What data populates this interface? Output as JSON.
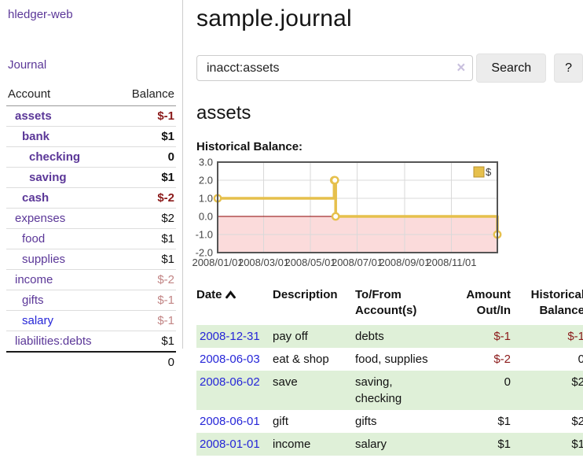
{
  "colors": {
    "purple": "#5b3798",
    "blue": "#2626d8",
    "neg": "#8b1a1a",
    "negmuted": "#c28585",
    "stripe": "#dff0d8",
    "gold": "#e6c04c"
  },
  "app": {
    "brand": "hledger-web",
    "nav_journal": "Journal"
  },
  "sidebar": {
    "accounts_table": {
      "headers": [
        "Account",
        "Balance"
      ],
      "rows": [
        {
          "name": "assets",
          "balance": "$-1",
          "depth": 1,
          "bold": true,
          "name_color": "purple",
          "balance_color": "neg"
        },
        {
          "name": "bank",
          "balance": "$1",
          "depth": 2,
          "bold": true,
          "name_color": "purple",
          "balance_color": "default"
        },
        {
          "name": "checking",
          "balance": "0",
          "depth": 3,
          "bold": true,
          "name_color": "purple",
          "balance_color": "default"
        },
        {
          "name": "saving",
          "balance": "$1",
          "depth": 3,
          "bold": true,
          "name_color": "purple",
          "balance_color": "default"
        },
        {
          "name": "cash",
          "balance": "$-2",
          "depth": 2,
          "bold": true,
          "name_color": "purple",
          "balance_color": "neg"
        },
        {
          "name": "expenses",
          "balance": "$2",
          "depth": 1,
          "bold": false,
          "name_color": "purple",
          "balance_color": "default"
        },
        {
          "name": "food",
          "balance": "$1",
          "depth": 2,
          "bold": false,
          "name_color": "purple",
          "balance_color": "default"
        },
        {
          "name": "supplies",
          "balance": "$1",
          "depth": 2,
          "bold": false,
          "name_color": "purple",
          "balance_color": "default"
        },
        {
          "name": "income",
          "balance": "$-2",
          "depth": 1,
          "bold": false,
          "name_color": "purple",
          "balance_color": "muted"
        },
        {
          "name": "gifts",
          "balance": "$-1",
          "depth": 2,
          "bold": false,
          "name_color": "purple",
          "balance_color": "muted"
        },
        {
          "name": "salary",
          "balance": "$-1",
          "depth": 2,
          "bold": false,
          "name_color": "blue",
          "balance_color": "muted"
        },
        {
          "name": "liabilities:debts",
          "balance": "$1",
          "depth": 1,
          "bold": false,
          "name_color": "purple",
          "balance_color": "default"
        }
      ],
      "total": "0"
    }
  },
  "main": {
    "title": "sample.journal",
    "search": {
      "value": "inacct:assets",
      "clear_icon": "×",
      "search_button": "Search",
      "help_button": "?"
    },
    "account_heading": "assets",
    "chart_label": "Historical Balance:"
  },
  "chart_data": {
    "type": "line",
    "step": true,
    "title": "Historical Balance:",
    "legend": "$",
    "legend_position": "top-right",
    "grid": true,
    "ylim": [
      -2,
      3
    ],
    "yticks": [
      "3.0",
      "2.0",
      "1.0",
      "0.0",
      "-1.0",
      "-2.0"
    ],
    "xticks": [
      "2008/01/01",
      "2008/03/01",
      "2008/05/01",
      "2008/07/01",
      "2008/09/01",
      "2008/11/01"
    ],
    "xrange": [
      "2008-01-01",
      "2008-12-31"
    ],
    "series": [
      {
        "name": "$",
        "color": "#e6c04c",
        "points": [
          [
            "2008-01-01",
            1
          ],
          [
            "2008-06-01",
            2
          ],
          [
            "2008-06-02",
            2
          ],
          [
            "2008-06-03",
            0
          ],
          [
            "2008-12-31",
            -1
          ]
        ]
      }
    ],
    "negative_fill": "#fbdbdb",
    "zero_line_color": "#8b0000"
  },
  "register_table": {
    "headers": [
      "Date",
      "Description",
      "To/From Account(s)",
      "Amount Out/In",
      "Historical Balance"
    ],
    "sort_icon": "chevron-up",
    "rows": [
      {
        "date": "2008-12-31",
        "description": "pay off",
        "accounts": "debts",
        "amount": "$-1",
        "amount_neg": true,
        "balance": "$-1",
        "balance_neg": true
      },
      {
        "date": "2008-06-03",
        "description": "eat & shop",
        "accounts": "food, supplies",
        "amount": "$-2",
        "amount_neg": true,
        "balance": "0",
        "balance_neg": false
      },
      {
        "date": "2008-06-02",
        "description": "save",
        "accounts": "saving, checking",
        "amount": "0",
        "amount_neg": false,
        "balance": "$2",
        "balance_neg": false
      },
      {
        "date": "2008-06-01",
        "description": "gift",
        "accounts": "gifts",
        "amount": "$1",
        "amount_neg": false,
        "balance": "$2",
        "balance_neg": false
      },
      {
        "date": "2008-01-01",
        "description": "income",
        "accounts": "salary",
        "amount": "$1",
        "amount_neg": false,
        "balance": "$1",
        "balance_neg": false
      }
    ]
  }
}
